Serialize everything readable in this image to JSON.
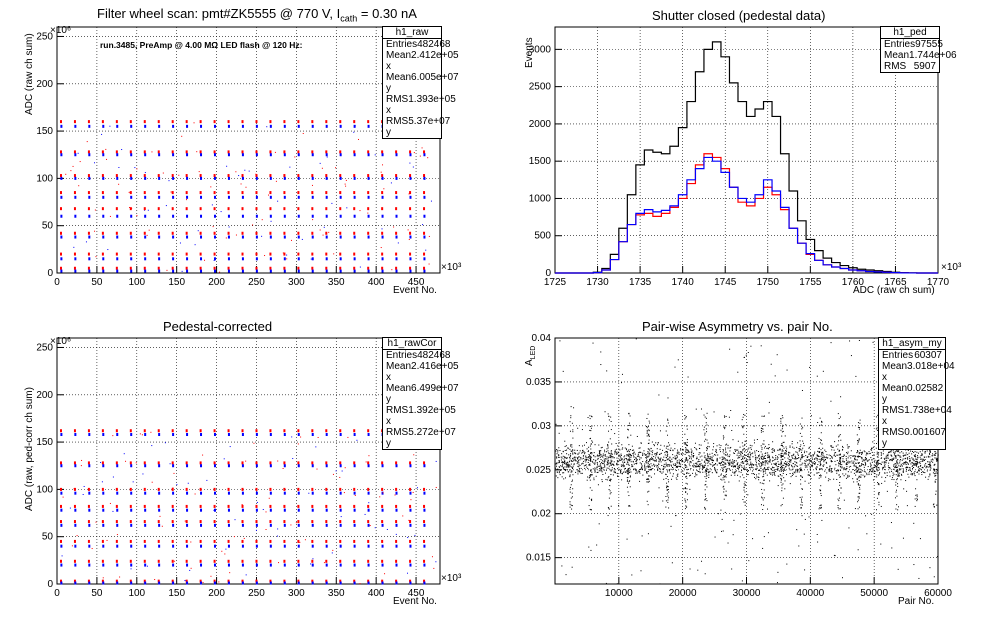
{
  "pads": {
    "raw": {
      "title_main": "Filter wheel scan: pmt#ZK5555 @   770 V, I",
      "title_sub": "cath",
      "title_tail": " = 0.30 nA",
      "note": "run.3485, PreAmp @ 4.00 MΩ LED flash @  120 Hz:",
      "exp_y": "×10⁶",
      "exp_x": "×10³",
      "ylabel": "ADC (raw ch sum)",
      "xlabel": "Event No.",
      "stats": {
        "name": "h1_raw",
        "rows": [
          [
            "Entries",
            "482468"
          ],
          [
            "Mean x",
            "2.412e+05"
          ],
          [
            "Mean y",
            "6.005e+07"
          ],
          [
            "RMS x",
            "1.393e+05"
          ],
          [
            "RMS y",
            "5.37e+07"
          ]
        ]
      }
    },
    "ped": {
      "title": "Shutter closed (pedestal data)",
      "exp_x": "×10³",
      "ylabel": "Events",
      "xlabel": "ADC (raw ch sum)",
      "stats": {
        "name": "h1_ped",
        "rows": [
          [
            "Entries",
            "97555"
          ],
          [
            "Mean",
            "1.744e+06"
          ],
          [
            "RMS",
            "5907"
          ]
        ]
      }
    },
    "cor": {
      "title": "Pedestal-corrected",
      "exp_y": "×10⁶",
      "exp_x": "×10³",
      "ylabel": "ADC (raw, ped-corr ch sum)",
      "xlabel": "Event No.",
      "stats": {
        "name": "h1_rawCor",
        "rows": [
          [
            "Entries",
            "482468"
          ],
          [
            "Mean x",
            "2.416e+05"
          ],
          [
            "Mean y",
            "6.499e+07"
          ],
          [
            "RMS x",
            "1.392e+05"
          ],
          [
            "RMS y",
            "5.272e+07"
          ]
        ]
      }
    },
    "asym": {
      "title": "Pair-wise Asymmetry vs. pair No.",
      "ylabel_main": "A",
      "ylabel_sub": "LED",
      "xlabel": "Pair No.",
      "stats": {
        "name": "h1_asym_my",
        "rows": [
          [
            "Entries",
            "60307"
          ],
          [
            "Mean x",
            "3.018e+04"
          ],
          [
            "Mean y",
            "0.02582"
          ],
          [
            "RMS x",
            "1.738e+04"
          ],
          [
            "RMS y",
            "0.001607"
          ]
        ]
      }
    }
  },
  "colors": {
    "red": "#ff0000",
    "blue": "#0000ff",
    "black": "#000000",
    "grid": "#000000"
  },
  "chart_data": [
    {
      "id": "raw",
      "type": "scatter",
      "xlim": [
        0,
        480
      ],
      "ylim": [
        0,
        260
      ],
      "xticks": [
        0,
        50,
        100,
        150,
        200,
        250,
        300,
        350,
        400,
        450
      ],
      "yticks": [
        0,
        50,
        100,
        150,
        200,
        250
      ],
      "grid": true,
      "levels": [
        160,
        155,
        128,
        125,
        103,
        100,
        85,
        80,
        68,
        60,
        42,
        38,
        20,
        15,
        5,
        2
      ],
      "period_x": 17.5,
      "series_colors": [
        "red",
        "blue"
      ]
    },
    {
      "id": "ped",
      "type": "line",
      "xlim": [
        1725,
        1770
      ],
      "ylim": [
        0,
        3300
      ],
      "xticks": [
        1725,
        1730,
        1735,
        1740,
        1745,
        1750,
        1755,
        1760,
        1765,
        1770
      ],
      "yticks": [
        0,
        500,
        1000,
        1500,
        2000,
        2500,
        3000
      ],
      "grid": true,
      "x": [
        1730,
        1731,
        1732,
        1733,
        1734,
        1735,
        1736,
        1737,
        1738,
        1739,
        1740,
        1741,
        1742,
        1743,
        1744,
        1745,
        1746,
        1747,
        1748,
        1749,
        1750,
        1751,
        1752,
        1753,
        1754,
        1755,
        1756,
        1757,
        1758,
        1759,
        1760,
        1761,
        1762,
        1763,
        1764,
        1765,
        1766,
        1767
      ],
      "series": [
        {
          "color": "black",
          "values": [
            10,
            60,
            250,
            600,
            1050,
            1450,
            1650,
            1620,
            1600,
            1700,
            1950,
            2300,
            2700,
            3000,
            3100,
            2900,
            2550,
            2300,
            2100,
            2200,
            2300,
            2100,
            1600,
            1100,
            700,
            450,
            300,
            200,
            140,
            100,
            70,
            50,
            40,
            30,
            20,
            10,
            5,
            2
          ]
        },
        {
          "color": "red",
          "values": [
            5,
            40,
            180,
            420,
            650,
            780,
            800,
            760,
            800,
            880,
            1000,
            1200,
            1450,
            1600,
            1550,
            1400,
            1150,
            950,
            900,
            1000,
            1150,
            1050,
            850,
            600,
            400,
            250,
            170,
            110,
            80,
            60,
            40,
            30,
            20,
            15,
            10,
            5,
            2,
            1
          ]
        },
        {
          "color": "blue",
          "values": [
            5,
            40,
            180,
            420,
            650,
            800,
            850,
            820,
            840,
            900,
            1050,
            1250,
            1400,
            1550,
            1500,
            1350,
            1150,
            1000,
            950,
            1050,
            1250,
            1100,
            880,
            600,
            400,
            260,
            170,
            110,
            80,
            60,
            40,
            30,
            20,
            15,
            10,
            5,
            2,
            1
          ]
        }
      ]
    },
    {
      "id": "cor",
      "type": "scatter",
      "xlim": [
        0,
        480
      ],
      "ylim": [
        0,
        260
      ],
      "xticks": [
        0,
        50,
        100,
        150,
        200,
        250,
        300,
        350,
        400,
        450
      ],
      "yticks": [
        0,
        50,
        100,
        150,
        200,
        250
      ],
      "grid": true,
      "levels": [
        162,
        158,
        128,
        125,
        100,
        96,
        82,
        78,
        66,
        62,
        45,
        40,
        24,
        20,
        3,
        1
      ],
      "period_x": 17.5,
      "series_colors": [
        "red",
        "blue"
      ]
    },
    {
      "id": "asym",
      "type": "scatter",
      "xlim": [
        0,
        60000
      ],
      "ylim": [
        0.012,
        0.04
      ],
      "xticks": [
        10000,
        20000,
        30000,
        40000,
        50000,
        60000
      ],
      "yticks": [
        0.015,
        0.02,
        0.025,
        0.03,
        0.035,
        0.04
      ],
      "grid": true,
      "band_center": 0.026,
      "band_halfwidth": 0.0012,
      "spike_x": [
        2500,
        5500,
        8500,
        11500,
        14500,
        17500,
        20500,
        23500,
        26500,
        29500,
        32500,
        35500,
        38500,
        41500,
        44500,
        47500,
        50500,
        53500,
        56500,
        59500
      ]
    }
  ]
}
